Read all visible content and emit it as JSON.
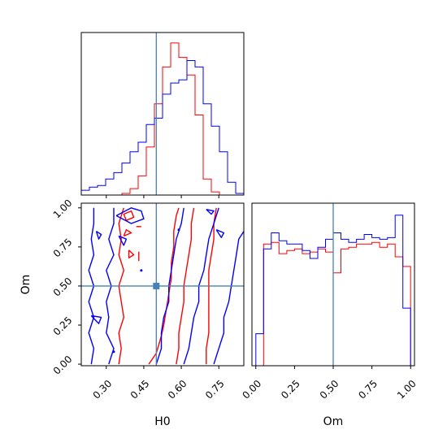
{
  "chart_data": [
    {
      "panel": "H0 marginal",
      "type": "histogram",
      "xlim": [
        0.2,
        0.85
      ],
      "truth": 0.5,
      "bins": [
        0.2,
        0.2325,
        0.265,
        0.2975,
        0.33,
        0.3625,
        0.395,
        0.4275,
        0.46,
        0.4925,
        0.525,
        0.5575,
        0.59,
        0.6225,
        0.655,
        0.6875,
        0.72,
        0.7525,
        0.785,
        0.8175,
        0.85
      ],
      "series": [
        {
          "color": "#ff0000",
          "counts": [
            0,
            0,
            0,
            0,
            0,
            0.01,
            0.04,
            0.12,
            0.3,
            0.57,
            0.8,
            0.95,
            0.86,
            0.75,
            0.5,
            0.1,
            0.02,
            0,
            0,
            0
          ]
        },
        {
          "color": "#0000ff",
          "counts": [
            0.03,
            0.05,
            0.06,
            0.1,
            0.14,
            0.2,
            0.27,
            0.33,
            0.44,
            0.48,
            0.63,
            0.7,
            0.72,
            0.84,
            0.8,
            0.57,
            0.43,
            0.27,
            0.08,
            0.01
          ]
        }
      ]
    },
    {
      "panel": "Om marginal",
      "type": "histogram",
      "xlabel": "Om",
      "xlim": [
        -0.025,
        1.025
      ],
      "truth": 0.5,
      "xticks": [
        "0.00",
        "0.25",
        "0.50",
        "0.75",
        "1.00"
      ],
      "xtick_values": [
        0,
        0.25,
        0.5,
        0.75,
        1.0
      ],
      "bins": [
        0,
        0.05,
        0.1,
        0.15,
        0.2,
        0.25,
        0.3,
        0.35,
        0.4,
        0.45,
        0.5,
        0.55,
        0.6,
        0.65,
        0.7,
        0.75,
        0.8,
        0.85,
        0.9,
        0.95,
        1.0
      ],
      "series": [
        {
          "color": "#ff0000",
          "counts": [
            0.0,
            0.76,
            0.77,
            0.7,
            0.72,
            0.73,
            0.7,
            0.71,
            0.73,
            0.71,
            0.58,
            0.73,
            0.74,
            0.76,
            0.76,
            0.77,
            0.74,
            0.76,
            0.68,
            0.62
          ]
        },
        {
          "color": "#0000ff",
          "counts": [
            0.2,
            0.73,
            0.83,
            0.78,
            0.76,
            0.76,
            0.72,
            0.67,
            0.74,
            0.79,
            0.83,
            0.79,
            0.77,
            0.79,
            0.82,
            0.8,
            0.79,
            0.8,
            0.94,
            0.36
          ]
        }
      ]
    },
    {
      "panel": "H0 vs Om joint",
      "type": "contour",
      "xlabel": "H0",
      "ylabel": "Om",
      "xlim": [
        0.2,
        0.85
      ],
      "ylim": [
        -0.01,
        1.03
      ],
      "xticks": [
        "0.30",
        "0.45",
        "0.60",
        "0.75"
      ],
      "xtick_values": [
        0.3,
        0.45,
        0.6,
        0.75
      ],
      "yticks": [
        "0.00",
        "0.25",
        "0.50",
        "0.75",
        "1.00"
      ],
      "ytick_values": [
        0,
        0.25,
        0.5,
        0.75,
        1.0
      ],
      "truth": [
        0.5,
        0.5
      ],
      "contours": [
        {
          "color": "#ff0000",
          "points": [
            [
              0.35,
              0.0
            ],
            [
              0.36,
              0.1
            ],
            [
              0.35,
              0.2
            ],
            [
              0.37,
              0.3
            ],
            [
              0.36,
              0.4
            ],
            [
              0.35,
              0.5
            ],
            [
              0.37,
              0.6
            ],
            [
              0.35,
              0.7
            ],
            [
              0.36,
              0.8
            ],
            [
              0.35,
              0.9
            ],
            [
              0.37,
              1.0
            ]
          ]
        },
        {
          "color": "#ff0000",
          "points": [
            [
              0.38,
              0.92
            ],
            [
              0.41,
              0.94
            ],
            [
              0.4,
              0.98
            ],
            [
              0.37,
              0.96
            ],
            [
              0.38,
              0.92
            ]
          ]
        },
        {
          "color": "#ff0000",
          "points": [
            [
              0.37,
              0.82
            ],
            [
              0.4,
              0.84
            ],
            [
              0.38,
              0.86
            ],
            [
              0.37,
              0.82
            ]
          ]
        },
        {
          "color": "#ff0000",
          "points": [
            [
              0.39,
              0.73
            ],
            [
              0.41,
              0.7
            ],
            [
              0.39,
              0.68
            ],
            [
              0.39,
              0.73
            ]
          ]
        },
        {
          "color": "#ff0000",
          "points": [
            [
              0.47,
              0.0
            ],
            [
              0.5,
              0.07
            ],
            [
              0.52,
              0.18
            ],
            [
              0.53,
              0.25
            ],
            [
              0.54,
              0.35
            ],
            [
              0.55,
              0.45
            ],
            [
              0.56,
              0.55
            ],
            [
              0.56,
              0.65
            ],
            [
              0.57,
              0.75
            ],
            [
              0.57,
              0.85
            ],
            [
              0.58,
              0.95
            ],
            [
              0.59,
              1.0
            ]
          ]
        },
        {
          "color": "#ff0000",
          "points": [
            [
              0.58,
              0.0
            ],
            [
              0.59,
              0.1
            ],
            [
              0.59,
              0.2
            ],
            [
              0.6,
              0.3
            ],
            [
              0.61,
              0.4
            ],
            [
              0.61,
              0.5
            ],
            [
              0.62,
              0.6
            ],
            [
              0.63,
              0.7
            ],
            [
              0.64,
              0.8
            ],
            [
              0.64,
              0.9
            ],
            [
              0.65,
              1.0
            ]
          ]
        },
        {
          "color": "#ff0000",
          "points": [
            [
              0.7,
              0.0
            ],
            [
              0.7,
              0.1
            ],
            [
              0.71,
              0.2
            ],
            [
              0.71,
              0.3
            ],
            [
              0.71,
              0.4
            ],
            [
              0.71,
              0.5
            ],
            [
              0.71,
              0.6
            ],
            [
              0.72,
              0.7
            ],
            [
              0.73,
              0.8
            ],
            [
              0.73,
              0.9
            ],
            [
              0.74,
              1.0
            ]
          ]
        },
        {
          "color": "#ff0000",
          "points": [
            [
              0.42,
              0.88
            ],
            [
              0.44,
              0.88
            ]
          ]
        },
        {
          "color": "#ff0000",
          "points": [
            [
              0.43,
              0.66
            ],
            [
              0.43,
              0.72
            ]
          ]
        },
        {
          "color": "#0000ff",
          "points": [
            [
              0.24,
              0.0
            ],
            [
              0.25,
              0.1
            ],
            [
              0.23,
              0.2
            ],
            [
              0.25,
              0.3
            ],
            [
              0.23,
              0.4
            ],
            [
              0.25,
              0.5
            ],
            [
              0.23,
              0.6
            ],
            [
              0.25,
              0.7
            ],
            [
              0.24,
              0.8
            ],
            [
              0.25,
              0.9
            ],
            [
              0.25,
              1.0
            ]
          ]
        },
        {
          "color": "#0000ff",
          "points": [
            [
              0.31,
              0.0
            ],
            [
              0.33,
              0.1
            ],
            [
              0.3,
              0.2
            ],
            [
              0.31,
              0.3
            ],
            [
              0.3,
              0.4
            ],
            [
              0.32,
              0.5
            ],
            [
              0.3,
              0.6
            ],
            [
              0.33,
              0.7
            ],
            [
              0.31,
              0.8
            ],
            [
              0.33,
              0.9
            ],
            [
              0.33,
              1.0
            ]
          ]
        },
        {
          "color": "#0000ff",
          "points": [
            [
              0.34,
              0.95
            ],
            [
              0.4,
              1.0
            ],
            [
              0.44,
              0.98
            ],
            [
              0.45,
              0.93
            ],
            [
              0.4,
              0.9
            ],
            [
              0.34,
              0.95
            ]
          ]
        },
        {
          "color": "#0000ff",
          "points": [
            [
              0.35,
              0.82
            ],
            [
              0.38,
              0.8
            ],
            [
              0.37,
              0.76
            ],
            [
              0.35,
              0.82
            ]
          ]
        },
        {
          "color": "#0000ff",
          "points": [
            [
              0.26,
              0.85
            ],
            [
              0.28,
              0.83
            ],
            [
              0.27,
              0.8
            ],
            [
              0.26,
              0.85
            ]
          ]
        },
        {
          "color": "#0000ff",
          "points": [
            [
              0.24,
              0.31
            ],
            [
              0.28,
              0.3
            ],
            [
              0.27,
              0.26
            ],
            [
              0.24,
              0.31
            ]
          ]
        },
        {
          "color": "#0000ff",
          "points": [
            [
              0.5,
              0.0
            ],
            [
              0.52,
              0.1
            ],
            [
              0.52,
              0.2
            ],
            [
              0.53,
              0.3
            ],
            [
              0.55,
              0.4
            ],
            [
              0.55,
              0.5
            ],
            [
              0.56,
              0.6
            ],
            [
              0.57,
              0.7
            ],
            [
              0.58,
              0.8
            ],
            [
              0.6,
              0.9
            ],
            [
              0.61,
              1.0
            ]
          ]
        },
        {
          "color": "#0000ff",
          "points": [
            [
              0.61,
              0.0
            ],
            [
              0.63,
              0.1
            ],
            [
              0.64,
              0.2
            ],
            [
              0.65,
              0.3
            ],
            [
              0.67,
              0.4
            ],
            [
              0.67,
              0.5
            ],
            [
              0.69,
              0.6
            ],
            [
              0.7,
              0.7
            ],
            [
              0.71,
              0.8
            ],
            [
              0.73,
              0.9
            ],
            [
              0.75,
              1.0
            ]
          ]
        },
        {
          "color": "#0000ff",
          "points": [
            [
              0.73,
              0.0
            ],
            [
              0.75,
              0.1
            ],
            [
              0.77,
              0.2
            ],
            [
              0.77,
              0.3
            ],
            [
              0.79,
              0.4
            ],
            [
              0.8,
              0.5
            ],
            [
              0.81,
              0.6
            ],
            [
              0.82,
              0.7
            ],
            [
              0.83,
              0.8
            ],
            [
              0.85,
              0.85
            ]
          ]
        },
        {
          "color": "#0000ff",
          "points": [
            [
              0.7,
              0.99
            ],
            [
              0.73,
              0.98
            ],
            [
              0.72,
              0.96
            ],
            [
              0.7,
              0.99
            ]
          ]
        },
        {
          "color": "#0000ff",
          "points": [
            [
              0.74,
              0.86
            ],
            [
              0.77,
              0.84
            ],
            [
              0.76,
              0.81
            ],
            [
              0.74,
              0.86
            ]
          ]
        },
        {
          "color": "#0000ff",
          "points": [
            [
              0.44,
              0.6
            ],
            [
              0.44,
              0.6
            ]
          ]
        },
        {
          "color": "#0000ff",
          "points": [
            [
              0.59,
              0.86
            ],
            [
              0.59,
              0.86
            ]
          ]
        },
        {
          "color": "#0000ff",
          "points": [
            [
              0.33,
              0.08
            ],
            [
              0.33,
              0.08
            ]
          ]
        }
      ]
    }
  ],
  "colors": {
    "truth": "#4682b4",
    "frame": "#000000"
  }
}
